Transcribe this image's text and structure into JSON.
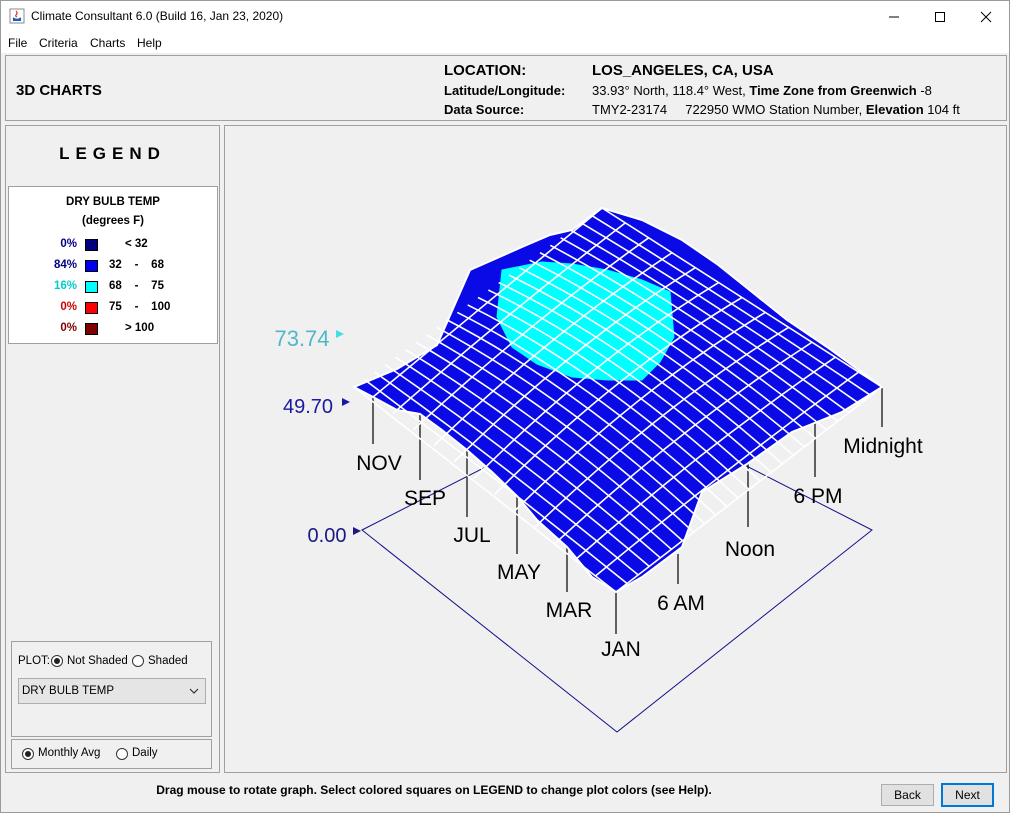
{
  "window": {
    "title": "Climate Consultant 6.0 (Build 16, Jan 23, 2020)"
  },
  "menu": [
    "File",
    "Criteria",
    "Charts",
    "Help"
  ],
  "header": {
    "page_title": "3D CHARTS",
    "location_label": "LOCATION:",
    "location_value": "LOS_ANGELES, CA, USA",
    "latlon_label": "Latitude/Longitude:",
    "latlon_value": "33.93° North, 118.4° West,",
    "timezone_label": "Time Zone from Greenwich",
    "timezone_value": "-8",
    "source_label": "Data Source:",
    "source_value": "TMY2-23174",
    "station_value": "722950 WMO Station Number,",
    "elevation_label": "Elevation",
    "elevation_value": "104 ft"
  },
  "legend": {
    "title": "LEGEND",
    "variable": "DRY BULB TEMP",
    "units": "(degrees F)",
    "rows": [
      {
        "pct": "0%",
        "range": "< 32",
        "color": "#000080",
        "pct_color": "#000080"
      },
      {
        "pct": "84%",
        "range": "32    -    68",
        "color": "#0000ee",
        "pct_color": "#000080"
      },
      {
        "pct": "16%",
        "range": "68    -    75",
        "color": "#00ffff",
        "pct_color": "#00cccc"
      },
      {
        "pct": "0%",
        "range": "75    -    100",
        "color": "#ff0000",
        "pct_color": "#cc0000"
      },
      {
        "pct": "0%",
        "range": "> 100",
        "color": "#800000",
        "pct_color": "#800000"
      }
    ]
  },
  "plot": {
    "label": "PLOT:",
    "not_shaded": "Not Shaded",
    "shaded": "Shaded",
    "selected_variable": "DRY BULB TEMP"
  },
  "period": {
    "monthly": "Monthly Avg",
    "daily": "Daily"
  },
  "chart": {
    "value_labels": [
      "73.74",
      "49.70",
      "0.00"
    ],
    "month_labels": [
      "NOV",
      "SEP",
      "JUL",
      "MAY",
      "MAR",
      "JAN"
    ],
    "hour_labels": [
      "Midnight",
      "6 PM",
      "Noon",
      "6 AM"
    ]
  },
  "status_text": "Drag mouse to rotate graph.  Select colored squares on LEGEND to change plot colors (see Help).",
  "buttons": {
    "back": "Back",
    "next": "Next"
  }
}
